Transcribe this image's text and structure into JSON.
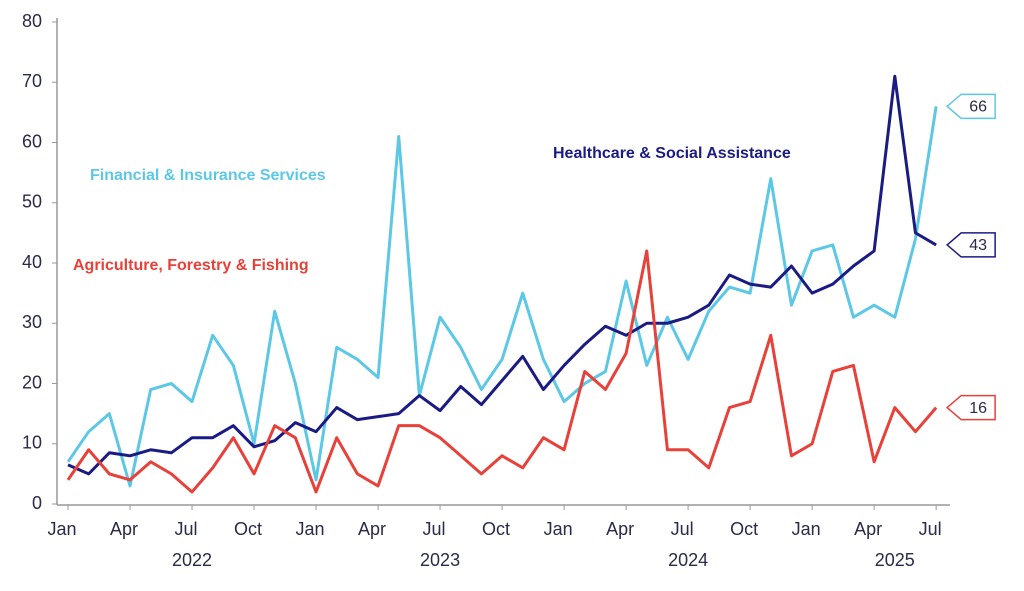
{
  "chart_data": {
    "type": "line",
    "categories": [
      "2022-01",
      "2022-02",
      "2022-03",
      "2022-04",
      "2022-05",
      "2022-06",
      "2022-07",
      "2022-08",
      "2022-09",
      "2022-10",
      "2022-11",
      "2022-12",
      "2023-01",
      "2023-02",
      "2023-03",
      "2023-04",
      "2023-05",
      "2023-06",
      "2023-07",
      "2023-08",
      "2023-09",
      "2023-10",
      "2023-11",
      "2023-12",
      "2024-01",
      "2024-02",
      "2024-03",
      "2024-04",
      "2024-05",
      "2024-06",
      "2024-07",
      "2024-08",
      "2024-09",
      "2024-10",
      "2024-11",
      "2024-12",
      "2025-01",
      "2025-02",
      "2025-03",
      "2025-04",
      "2025-05",
      "2025-06",
      "2025-07"
    ],
    "series": [
      {
        "name": "Financial & Insurance Services",
        "color": "#5cc8e6",
        "values": [
          7,
          12,
          15,
          3,
          19,
          20,
          17,
          28,
          23,
          10,
          32,
          20,
          4,
          26,
          24,
          21,
          61,
          18,
          31,
          26,
          19,
          24,
          35,
          24,
          17,
          20,
          22,
          37,
          23,
          31,
          24,
          32,
          36,
          35,
          54,
          33,
          42,
          43,
          31,
          33,
          31,
          44,
          66
        ]
      },
      {
        "name": "Healthcare & Social Assistance",
        "color": "#1b1b84",
        "values": [
          6.5,
          5,
          8.5,
          8,
          9,
          8.5,
          11,
          11,
          13,
          9.5,
          10.5,
          13.5,
          12,
          16,
          14,
          14.5,
          15,
          18,
          15.5,
          19.5,
          16.5,
          20.5,
          24.5,
          19,
          23,
          26.5,
          29.5,
          28,
          30,
          30,
          31,
          33,
          38,
          36.5,
          36,
          39.5,
          35,
          36.5,
          39.5,
          42,
          71,
          45,
          43
        ]
      },
      {
        "name": "Agriculture, Forestry & Fishing",
        "color": "#e8413a",
        "values": [
          4,
          9,
          5,
          4,
          7,
          5,
          2,
          6,
          11,
          5,
          13,
          11,
          2,
          11,
          5,
          3,
          13,
          13,
          11,
          8,
          5,
          8,
          6,
          11,
          9,
          22,
          19,
          25,
          42,
          9,
          9,
          6,
          16,
          17,
          28,
          8,
          10,
          22,
          23,
          7,
          16,
          12,
          16
        ]
      }
    ],
    "ylim": [
      0,
      80
    ],
    "yticks": [
      0,
      10,
      20,
      30,
      40,
      50,
      60,
      70,
      80
    ],
    "xticks": [
      {
        "value": "2022-01",
        "label": "Jan"
      },
      {
        "value": "2022-04",
        "label": "Apr"
      },
      {
        "value": "2022-07",
        "label": "Jul"
      },
      {
        "value": "2022-10",
        "label": "Oct"
      },
      {
        "value": "2023-01",
        "label": "Jan"
      },
      {
        "value": "2023-04",
        "label": "Apr"
      },
      {
        "value": "2023-07",
        "label": "Jul"
      },
      {
        "value": "2023-10",
        "label": "Oct"
      },
      {
        "value": "2024-01",
        "label": "Jan"
      },
      {
        "value": "2024-04",
        "label": "Apr"
      },
      {
        "value": "2024-07",
        "label": "Jul"
      },
      {
        "value": "2024-10",
        "label": "Oct"
      },
      {
        "value": "2025-01",
        "label": "Jan"
      },
      {
        "value": "2025-04",
        "label": "Apr"
      },
      {
        "value": "2025-07",
        "label": "Jul"
      }
    ],
    "year_labels": [
      {
        "value": "2022-07",
        "label": "2022"
      },
      {
        "value": "2023-07",
        "label": "2023"
      },
      {
        "value": "2024-07",
        "label": "2024"
      },
      {
        "value": "2025-05",
        "label": "2025"
      }
    ],
    "grid": false
  }
}
